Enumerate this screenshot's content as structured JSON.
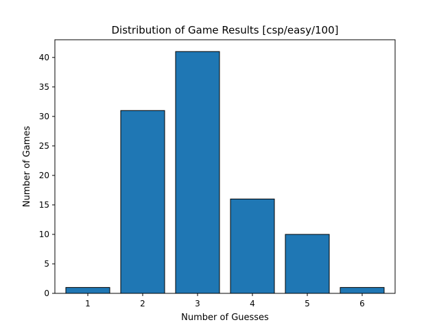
{
  "chart_data": {
    "type": "bar",
    "title": "Distribution of Game Results [csp/easy/100]",
    "xlabel": "Number of Guesses",
    "ylabel": "Number of Games",
    "categories": [
      "1",
      "2",
      "3",
      "4",
      "5",
      "6"
    ],
    "values": [
      1,
      31,
      41,
      16,
      10,
      1
    ],
    "ylim": [
      0,
      43
    ],
    "yticks": [
      0,
      5,
      10,
      15,
      20,
      25,
      30,
      35,
      40
    ],
    "grid": false,
    "legend": "none",
    "colors": {
      "bar": "#1f77b4",
      "bar_edge": "#000000",
      "axis": "#000000"
    }
  }
}
